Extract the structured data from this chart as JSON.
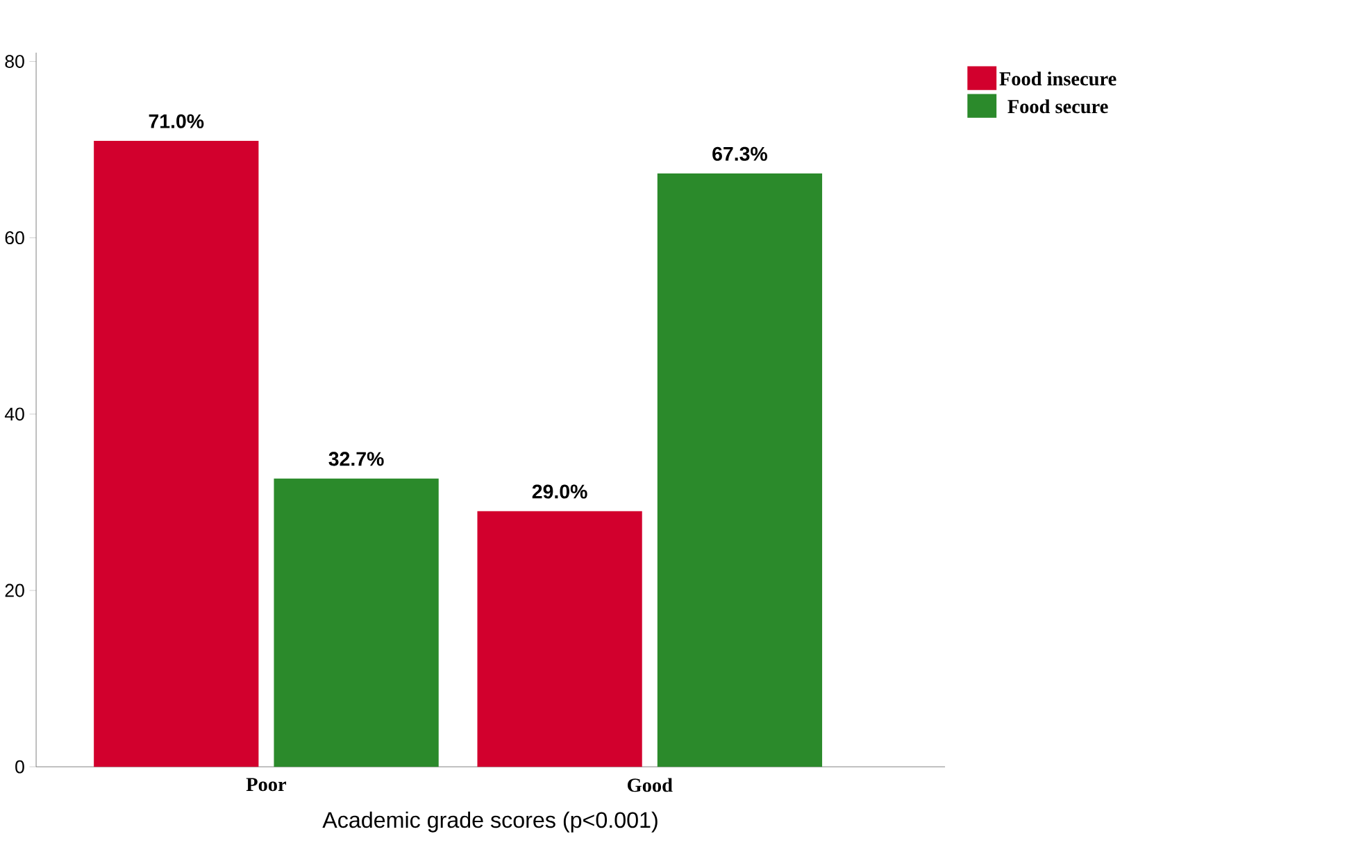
{
  "chart_data": {
    "type": "bar",
    "xlabel": "Academic grade scores (p<0.001)",
    "categories": [
      "Poor",
      "Good"
    ],
    "series": [
      {
        "name": "Food insecure",
        "color": "#d2002d",
        "values": [
          71.0,
          29.0
        ],
        "value_labels": [
          "71.0%",
          "29.0%"
        ]
      },
      {
        "name": "Food secure",
        "color": "#2b8a2b",
        "values": [
          32.7,
          67.3
        ],
        "value_labels": [
          "32.7%",
          "67.3%"
        ]
      }
    ],
    "ylim": [
      0,
      81
    ],
    "yticks": [
      0,
      20,
      40,
      60,
      80
    ],
    "grid": false,
    "legend": "top right"
  }
}
